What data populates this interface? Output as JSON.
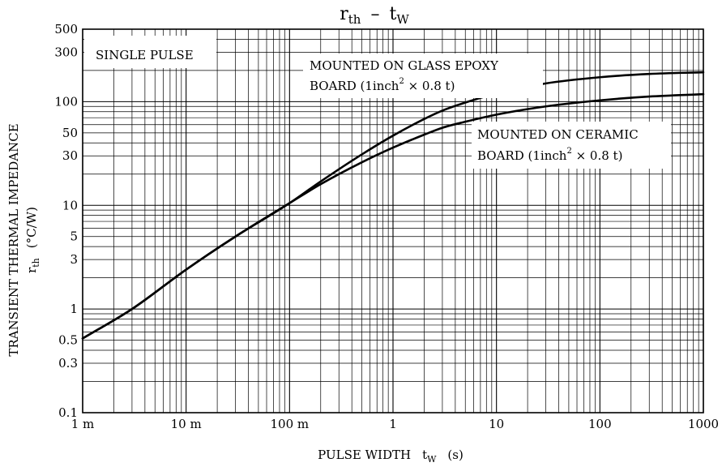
{
  "chart_data": {
    "type": "line",
    "title": "r_th – t_w",
    "title_main": "r",
    "title_main_sub": "th",
    "title_dash": "–",
    "title_tail": "t",
    "title_tail_sub": "W",
    "xlabel_main": "PULSE WIDTH",
    "xlabel_var": "t",
    "xlabel_var_sub": "W",
    "xlabel_unit": "(s)",
    "ylabel_line1": "TRANSIENT THERMAL IMPEDANCE",
    "ylabel_var": "r",
    "ylabel_var_sub": "th",
    "ylabel_unit": "(°C/W)",
    "x_scale": "log",
    "y_scale": "log",
    "xlim": [
      0.001,
      1000
    ],
    "ylim": [
      0.1,
      500
    ],
    "grid": true,
    "x_ticks": [
      {
        "value": 0.001,
        "label": "1 m"
      },
      {
        "value": 0.01,
        "label": "10 m"
      },
      {
        "value": 0.1,
        "label": "100 m"
      },
      {
        "value": 1,
        "label": "1"
      },
      {
        "value": 10,
        "label": "10"
      },
      {
        "value": 100,
        "label": "100"
      },
      {
        "value": 1000,
        "label": "1000"
      }
    ],
    "y_ticks": [
      {
        "value": 0.1,
        "label": "0.1"
      },
      {
        "value": 0.3,
        "label": "0.3"
      },
      {
        "value": 0.5,
        "label": "0.5"
      },
      {
        "value": 1,
        "label": "1"
      },
      {
        "value": 3,
        "label": "3"
      },
      {
        "value": 5,
        "label": "5"
      },
      {
        "value": 10,
        "label": "10"
      },
      {
        "value": 30,
        "label": "30"
      },
      {
        "value": 50,
        "label": "50"
      },
      {
        "value": 100,
        "label": "100"
      },
      {
        "value": 300,
        "label": "300"
      },
      {
        "value": 500,
        "label": "500"
      }
    ],
    "annotations": {
      "single_pulse": "SINGLE PULSE",
      "glass_line1": "MOUNTED ON GLASS EPOXY",
      "glass_line2_a": "BOARD (1inch",
      "glass_line2_sup": "2",
      "glass_line2_b": " × 0.8 t)",
      "ceramic_line1": "MOUNTED ON CERAMIC",
      "ceramic_line2_a": "BOARD (1inch",
      "ceramic_line2_sup": "2",
      "ceramic_line2_b": " × 0.8 t)"
    },
    "series": [
      {
        "id": "glass-epoxy",
        "x": [
          0.001,
          0.003,
          0.01,
          0.03,
          0.1,
          0.2,
          0.5,
          1,
          2,
          3,
          5,
          10,
          30,
          100,
          300,
          1000
        ],
        "y": [
          0.52,
          1.0,
          2.4,
          5.0,
          10.5,
          17,
          31,
          47,
          68,
          82,
          98,
          120,
          150,
          172,
          185,
          192
        ]
      },
      {
        "id": "ceramic",
        "x": [
          0.001,
          0.003,
          0.01,
          0.03,
          0.1,
          0.2,
          0.5,
          1,
          2,
          3,
          5,
          10,
          30,
          100,
          300,
          1000
        ],
        "y": [
          0.52,
          1.0,
          2.4,
          5.0,
          10.5,
          16,
          26,
          36,
          48,
          56,
          64,
          75,
          90,
          103,
          112,
          118
        ]
      }
    ]
  }
}
